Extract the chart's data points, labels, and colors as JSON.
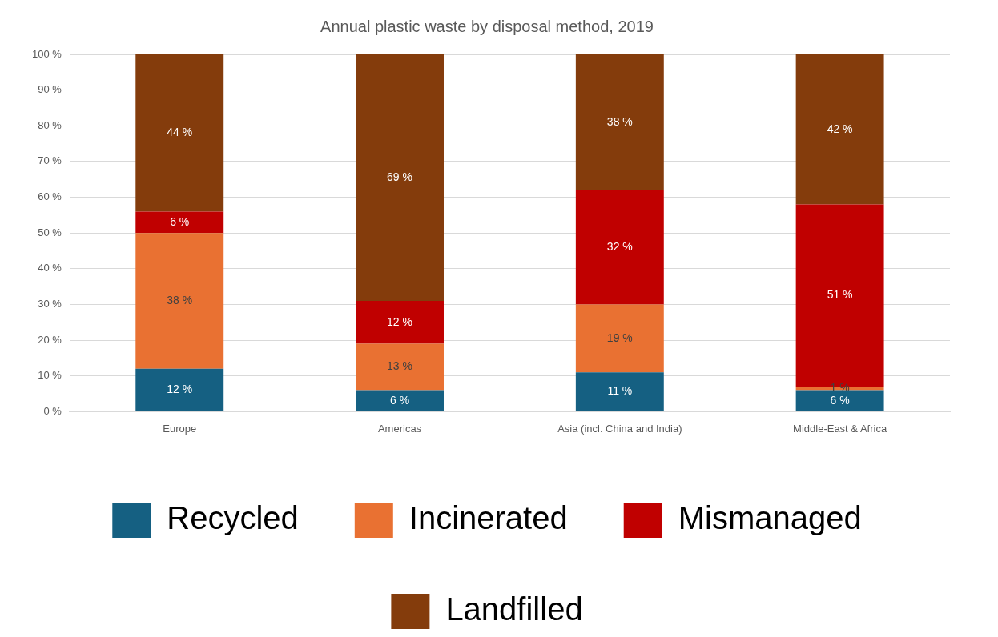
{
  "chart_data": {
    "type": "bar",
    "title": "Annual plastic waste by disposal method, 2019",
    "stacked": true,
    "categories": [
      "Europe",
      "Americas",
      "Asia (incl. China and India)",
      "Middle-East & Africa"
    ],
    "series": [
      {
        "name": "Recycled",
        "color": "#156082",
        "values": [
          12,
          6,
          11,
          6
        ],
        "value_labels": [
          "12 %",
          "6 %",
          "11 %",
          "6 %"
        ]
      },
      {
        "name": "Incinerated",
        "color": "#e97132",
        "values": [
          38,
          13,
          19,
          1
        ],
        "value_labels": [
          "38 %",
          "13 %",
          "19 %",
          "1 %"
        ]
      },
      {
        "name": "Mismanaged",
        "color": "#c00000",
        "values": [
          6,
          12,
          32,
          51
        ],
        "value_labels": [
          "6 %",
          "12 %",
          "32 %",
          "51 %"
        ]
      },
      {
        "name": "Landfilled",
        "color": "#843c0c",
        "values": [
          44,
          69,
          38,
          42
        ],
        "value_labels": [
          "44 %",
          "69 %",
          "38 %",
          "42 %"
        ]
      }
    ],
    "ylim": [
      0,
      100
    ],
    "yticks": [
      {
        "value": 0,
        "label": "0 %"
      },
      {
        "value": 10,
        "label": "10 %"
      },
      {
        "value": 20,
        "label": "20 %"
      },
      {
        "value": 30,
        "label": "30 %"
      },
      {
        "value": 40,
        "label": "40 %"
      },
      {
        "value": 50,
        "label": "50 %"
      },
      {
        "value": 60,
        "label": "60 %"
      },
      {
        "value": 70,
        "label": "70 %"
      },
      {
        "value": 80,
        "label": "80 %"
      },
      {
        "value": 90,
        "label": "90 %"
      },
      {
        "value": 100,
        "label": "100 %"
      }
    ],
    "grid": "y",
    "legend": "bottom"
  }
}
